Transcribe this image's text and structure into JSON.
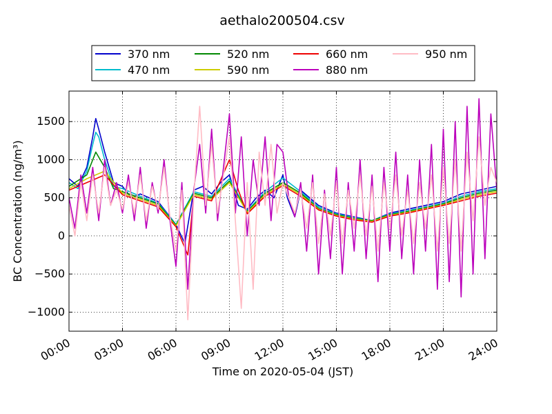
{
  "chart_data": {
    "type": "line",
    "title": "aethalo200504.csv",
    "xlabel": "Time on 2020-05-04 (JST)",
    "ylabel": "BC Concentration (ng/m³)",
    "xlim": [
      "00:00",
      "24:00"
    ],
    "ylim": [
      -1250,
      1900
    ],
    "x_ticks": [
      "00:00",
      "03:00",
      "06:00",
      "09:00",
      "12:00",
      "15:00",
      "18:00",
      "21:00",
      "24:00"
    ],
    "y_ticks": [
      -1000,
      -500,
      0,
      500,
      1000,
      1500
    ],
    "grid": true,
    "legend_placement": "top-center, above plot",
    "series": [
      {
        "name": "370 nm",
        "color": "#0000cc",
        "x": [
          "00:00",
          "00:30",
          "01:00",
          "01:20",
          "01:30",
          "01:40",
          "02:00",
          "02:30",
          "03:00",
          "03:30",
          "04:00",
          "05:00",
          "06:00",
          "06:30",
          "07:00",
          "07:30",
          "08:00",
          "08:30",
          "09:00",
          "09:30",
          "10:00",
          "10:30",
          "11:00",
          "11:30",
          "12:00",
          "12:15",
          "12:40",
          "13:00",
          "14:00",
          "15:00",
          "16:00",
          "17:00",
          "18:00",
          "19:00",
          "20:00",
          "21:00",
          "22:00",
          "23:00",
          "24:00"
        ],
        "y": [
          750,
          650,
          900,
          1300,
          1540,
          1400,
          1100,
          700,
          650,
          500,
          550,
          450,
          150,
          -100,
          600,
          650,
          550,
          700,
          800,
          400,
          350,
          500,
          600,
          500,
          800,
          500,
          250,
          600,
          400,
          300,
          250,
          200,
          300,
          350,
          400,
          450,
          550,
          600,
          650
        ]
      },
      {
        "name": "470 nm",
        "color": "#00bbcc",
        "x": [
          "00:00",
          "00:30",
          "01:00",
          "01:20",
          "01:30",
          "01:40",
          "02:00",
          "02:30",
          "03:00",
          "04:00",
          "05:00",
          "06:00",
          "07:00",
          "08:00",
          "09:00",
          "10:00",
          "11:00",
          "12:00",
          "13:00",
          "14:00",
          "15:00",
          "16:00",
          "17:00",
          "18:00",
          "19:00",
          "20:00",
          "21:00",
          "22:00",
          "23:00",
          "24:00"
        ],
        "y": [
          700,
          620,
          850,
          1200,
          1360,
          1300,
          1000,
          650,
          620,
          520,
          430,
          150,
          580,
          520,
          750,
          330,
          580,
          760,
          580,
          380,
          290,
          240,
          200,
          290,
          330,
          380,
          430,
          520,
          580,
          620
        ]
      },
      {
        "name": "520 nm",
        "color": "#008800",
        "x": [
          "00:00",
          "01:00",
          "01:30",
          "02:00",
          "02:30",
          "03:00",
          "04:00",
          "05:00",
          "06:00",
          "07:00",
          "08:00",
          "09:00",
          "10:00",
          "11:00",
          "12:00",
          "13:00",
          "14:00",
          "15:00",
          "16:00",
          "17:00",
          "18:00",
          "19:00",
          "20:00",
          "21:00",
          "22:00",
          "23:00",
          "24:00"
        ],
        "y": [
          650,
          800,
          1100,
          900,
          620,
          580,
          500,
          420,
          140,
          560,
          500,
          720,
          320,
          560,
          700,
          560,
          360,
          280,
          230,
          200,
          280,
          320,
          370,
          420,
          500,
          560,
          600
        ]
      },
      {
        "name": "590 nm",
        "color": "#cccc00",
        "x": [
          "00:00",
          "01:00",
          "02:00",
          "03:00",
          "04:00",
          "05:00",
          "06:00",
          "07:00",
          "08:00",
          "09:00",
          "10:00",
          "11:00",
          "12:00",
          "13:00",
          "14:00",
          "15:00",
          "16:00",
          "17:00",
          "18:00",
          "19:00",
          "20:00",
          "21:00",
          "22:00",
          "23:00",
          "24:00"
        ],
        "y": [
          620,
          750,
          850,
          560,
          480,
          400,
          130,
          540,
          480,
          700,
          310,
          540,
          680,
          540,
          350,
          270,
          220,
          190,
          270,
          310,
          360,
          410,
          480,
          540,
          580
        ]
      },
      {
        "name": "660 nm",
        "color": "#ee0000",
        "x": [
          "00:00",
          "01:00",
          "02:00",
          "03:00",
          "04:00",
          "05:00",
          "06:00",
          "06:40",
          "07:00",
          "08:00",
          "09:00",
          "09:30",
          "10:00",
          "11:00",
          "12:00",
          "13:00",
          "14:00",
          "15:00",
          "16:00",
          "17:00",
          "18:00",
          "19:00",
          "20:00",
          "21:00",
          "22:00",
          "23:00",
          "24:00"
        ],
        "y": [
          600,
          700,
          800,
          540,
          460,
          380,
          120,
          -250,
          520,
          460,
          1000,
          600,
          290,
          520,
          660,
          520,
          340,
          260,
          210,
          180,
          260,
          300,
          350,
          400,
          460,
          520,
          560
        ]
      },
      {
        "name": "880 nm",
        "color": "#bb00bb",
        "x": [
          "00:00",
          "00:20",
          "00:40",
          "01:00",
          "01:20",
          "01:40",
          "02:00",
          "02:20",
          "02:40",
          "03:00",
          "03:20",
          "03:40",
          "04:00",
          "04:20",
          "04:40",
          "05:00",
          "05:20",
          "05:40",
          "06:00",
          "06:20",
          "06:40",
          "07:00",
          "07:20",
          "07:40",
          "08:00",
          "08:20",
          "08:40",
          "09:00",
          "09:20",
          "09:40",
          "10:00",
          "10:20",
          "10:40",
          "11:00",
          "11:20",
          "11:40",
          "12:00",
          "12:20",
          "12:40",
          "13:00",
          "13:20",
          "13:40",
          "14:00",
          "14:20",
          "14:40",
          "15:00",
          "15:20",
          "15:40",
          "16:00",
          "16:20",
          "16:40",
          "17:00",
          "17:20",
          "17:40",
          "18:00",
          "18:20",
          "18:40",
          "19:00",
          "19:20",
          "19:40",
          "20:00",
          "20:20",
          "20:40",
          "21:00",
          "21:20",
          "21:40",
          "22:00",
          "22:20",
          "22:40",
          "23:00",
          "23:20",
          "23:40",
          "24:00"
        ],
        "y": [
          500,
          100,
          800,
          300,
          900,
          200,
          1000,
          400,
          700,
          300,
          800,
          200,
          900,
          100,
          700,
          300,
          1000,
          200,
          -400,
          700,
          -700,
          600,
          1200,
          300,
          1400,
          200,
          900,
          1600,
          300,
          1300,
          0,
          1000,
          400,
          1300,
          200,
          1200,
          1100,
          500,
          250,
          700,
          -200,
          800,
          -500,
          600,
          -300,
          900,
          -500,
          700,
          -200,
          1000,
          -300,
          800,
          -600,
          900,
          -200,
          1100,
          -300,
          800,
          -500,
          1000,
          -200,
          1200,
          -700,
          1400,
          -600,
          1500,
          -800,
          1700,
          -500,
          1800,
          -300,
          1600,
          600
        ]
      },
      {
        "name": "950 nm",
        "color": "#ffbbc4",
        "x": [
          "00:00",
          "00:20",
          "00:40",
          "01:00",
          "01:20",
          "01:40",
          "02:00",
          "02:20",
          "02:40",
          "03:00",
          "03:20",
          "03:40",
          "04:00",
          "04:20",
          "04:40",
          "05:00",
          "05:20",
          "05:40",
          "06:00",
          "06:20",
          "06:40",
          "07:00",
          "07:20",
          "07:40",
          "08:00",
          "08:20",
          "08:40",
          "09:00",
          "09:20",
          "09:40",
          "10:00",
          "10:20",
          "10:40",
          "11:00",
          "11:20",
          "11:40",
          "12:00",
          "12:20",
          "12:40",
          "13:00",
          "13:20",
          "13:40",
          "14:00",
          "14:20",
          "14:40",
          "15:00",
          "15:20",
          "15:40",
          "16:00",
          "16:20",
          "16:40",
          "17:00",
          "17:20",
          "17:40",
          "18:00",
          "18:20",
          "18:40",
          "19:00",
          "19:20",
          "19:40",
          "20:00",
          "20:20",
          "20:40",
          "21:00",
          "21:20",
          "21:40",
          "22:00",
          "22:20",
          "22:40",
          "23:00",
          "23:20",
          "23:40",
          "24:00"
        ],
        "y": [
          400,
          0,
          700,
          200,
          800,
          300,
          900,
          400,
          600,
          350,
          700,
          300,
          800,
          200,
          650,
          350,
          900,
          250,
          -200,
          600,
          -1100,
          500,
          1700,
          400,
          1200,
          300,
          800,
          1300,
          200,
          -950,
          700,
          -700,
          1100,
          400,
          1200,
          300,
          700,
          500,
          300,
          600,
          100,
          700,
          -100,
          550,
          0,
          700,
          -100,
          600,
          100,
          800,
          0,
          650,
          -200,
          700,
          100,
          800,
          0,
          600,
          -100,
          700,
          100,
          800,
          -200,
          900,
          -100,
          1000,
          -200,
          1100,
          200,
          1300,
          400,
          900,
          700
        ]
      }
    ]
  }
}
